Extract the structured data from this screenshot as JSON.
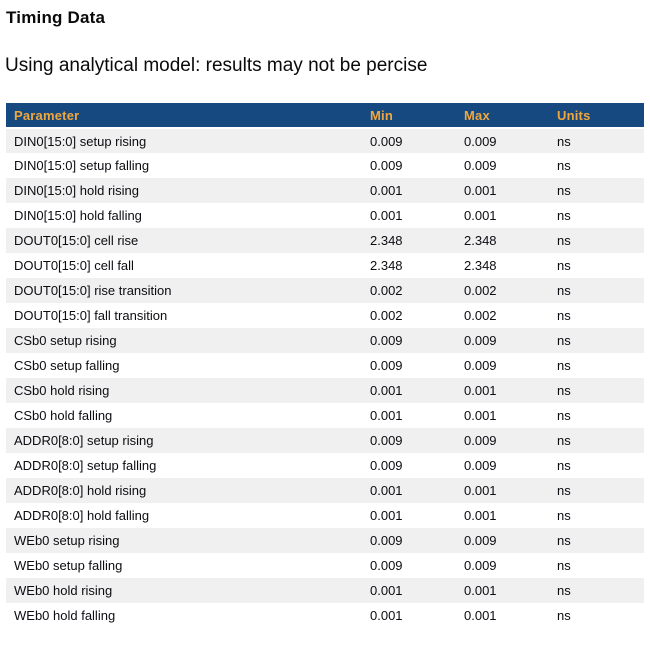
{
  "page": {
    "title": "Timing Data",
    "subtitle": "Using analytical model: results may not be percise"
  },
  "table": {
    "columns": [
      "Parameter",
      "Min",
      "Max",
      "Units"
    ],
    "rows": [
      {
        "parameter": "DIN0[15:0] setup rising",
        "min": "0.009",
        "max": "0.009",
        "units": "ns"
      },
      {
        "parameter": "DIN0[15:0] setup falling",
        "min": "0.009",
        "max": "0.009",
        "units": "ns"
      },
      {
        "parameter": "DIN0[15:0] hold rising",
        "min": "0.001",
        "max": "0.001",
        "units": "ns"
      },
      {
        "parameter": "DIN0[15:0] hold falling",
        "min": "0.001",
        "max": "0.001",
        "units": "ns"
      },
      {
        "parameter": "DOUT0[15:0] cell rise",
        "min": "2.348",
        "max": "2.348",
        "units": "ns"
      },
      {
        "parameter": "DOUT0[15:0] cell fall",
        "min": "2.348",
        "max": "2.348",
        "units": "ns"
      },
      {
        "parameter": "DOUT0[15:0] rise transition",
        "min": "0.002",
        "max": "0.002",
        "units": "ns"
      },
      {
        "parameter": "DOUT0[15:0] fall transition",
        "min": "0.002",
        "max": "0.002",
        "units": "ns"
      },
      {
        "parameter": "CSb0 setup rising",
        "min": "0.009",
        "max": "0.009",
        "units": "ns"
      },
      {
        "parameter": "CSb0 setup falling",
        "min": "0.009",
        "max": "0.009",
        "units": "ns"
      },
      {
        "parameter": "CSb0 hold rising",
        "min": "0.001",
        "max": "0.001",
        "units": "ns"
      },
      {
        "parameter": "CSb0 hold falling",
        "min": "0.001",
        "max": "0.001",
        "units": "ns"
      },
      {
        "parameter": "ADDR0[8:0] setup rising",
        "min": "0.009",
        "max": "0.009",
        "units": "ns"
      },
      {
        "parameter": "ADDR0[8:0] setup falling",
        "min": "0.009",
        "max": "0.009",
        "units": "ns"
      },
      {
        "parameter": "ADDR0[8:0] hold rising",
        "min": "0.001",
        "max": "0.001",
        "units": "ns"
      },
      {
        "parameter": "ADDR0[8:0] hold falling",
        "min": "0.001",
        "max": "0.001",
        "units": "ns"
      },
      {
        "parameter": "WEb0 setup rising",
        "min": "0.009",
        "max": "0.009",
        "units": "ns"
      },
      {
        "parameter": "WEb0 setup falling",
        "min": "0.009",
        "max": "0.009",
        "units": "ns"
      },
      {
        "parameter": "WEb0 hold rising",
        "min": "0.001",
        "max": "0.001",
        "units": "ns"
      },
      {
        "parameter": "WEb0 hold falling",
        "min": "0.001",
        "max": "0.001",
        "units": "ns"
      }
    ]
  },
  "colors": {
    "header_bg": "#16497f",
    "header_text": "#efa73e",
    "stripe": "#f0f0f0",
    "row_text": "#0c0c12"
  }
}
